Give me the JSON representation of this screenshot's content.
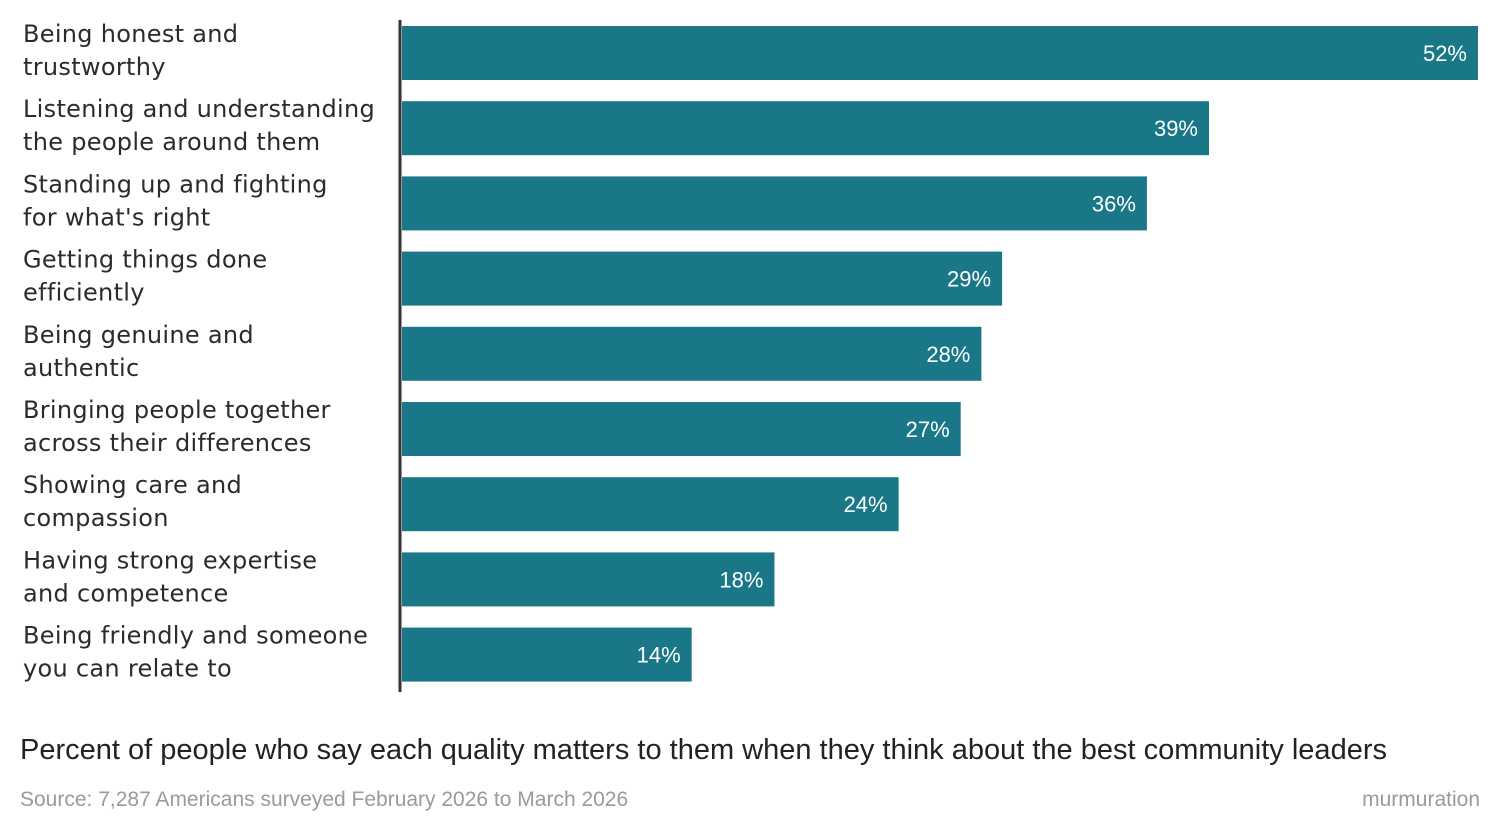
{
  "chart_data": {
    "type": "bar",
    "orientation": "horizontal",
    "categories": [
      [
        "Being honest and",
        "trustworthy"
      ],
      [
        "Listening and understanding",
        "the people around them"
      ],
      [
        "Standing up and fighting",
        "for what's right"
      ],
      [
        "Getting things done",
        "efficiently"
      ],
      [
        "Being genuine and",
        "authentic"
      ],
      [
        "Bringing people together",
        "across their differences"
      ],
      [
        "Showing care and",
        "compassion"
      ],
      [
        "Having strong expertise",
        "and competence"
      ],
      [
        "Being friendly and someone",
        "you can relate to"
      ]
    ],
    "values": [
      52,
      39,
      36,
      29,
      28,
      27,
      24,
      18,
      14
    ],
    "value_labels": [
      "52%",
      "39%",
      "36%",
      "29%",
      "28%",
      "27%",
      "24%",
      "18%",
      "14%"
    ],
    "xlim": [
      0,
      52
    ],
    "bar_color": "#197787",
    "axis_color": "#333333",
    "grid": false,
    "title": "Percent of people who say each quality matters to them when they think about the best community leaders",
    "source": "Source: 7,287 Americans surveyed February 2026 to March 2026"
  },
  "brand": "murmuration"
}
